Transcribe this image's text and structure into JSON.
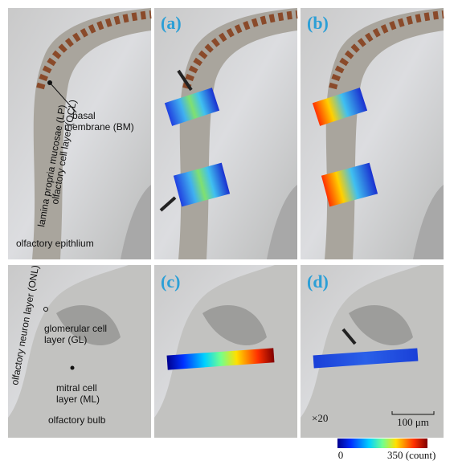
{
  "labels": {
    "a": "(a)",
    "b": "(b)",
    "c": "(c)",
    "d": "(d)"
  },
  "epithelium": {
    "bm": [
      "basal",
      "membrane (BM)"
    ],
    "lp": "lamina propria mucosae (LP)",
    "ocl": "olfactory cell layer (OCL)",
    "caption": "olfactory epithlium"
  },
  "bulb": {
    "onl": "olfactory neuron layer (ONL)",
    "gl": [
      "glomerular cell",
      "layer (GL)"
    ],
    "ml": [
      "mitral cell",
      "layer (ML)"
    ],
    "caption": "olfactory bulb"
  },
  "magnification": "×20",
  "scale_bar": "100 μm",
  "colorbar": {
    "min": "0",
    "max": "350 (count)"
  }
}
